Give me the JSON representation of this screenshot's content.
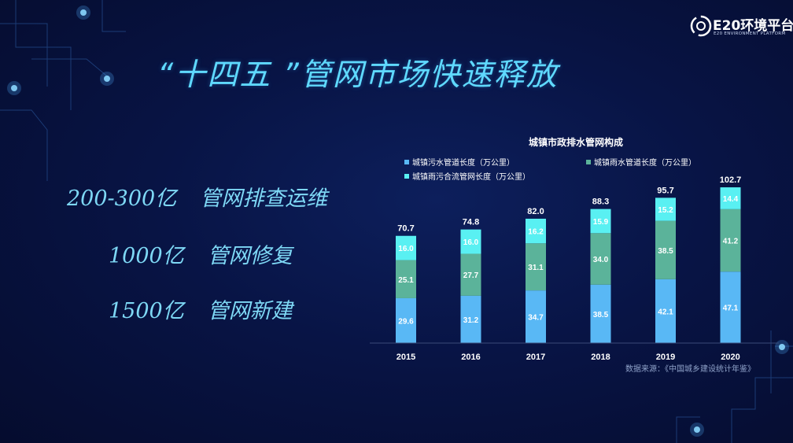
{
  "logo": {
    "name": "E20环境平台",
    "subtitle": "E20 ENVIRONMENT PLATFORM"
  },
  "title": "“十四五 ”管网市场快速释放",
  "stats": [
    {
      "amount": "200-300亿",
      "desc": "管网排查运维"
    },
    {
      "amount": "1000亿",
      "desc": "管网修复"
    },
    {
      "amount": "1500亿",
      "desc": "管网新建"
    }
  ],
  "colors": {
    "background": "#081445",
    "title": "#5fd9ff",
    "series_sewage": "#59b8f5",
    "series_storm": "#5bb39a",
    "series_combined": "#59f0f2"
  },
  "chart_data": {
    "type": "bar",
    "stacked": true,
    "title": "城镇市政排水管网构成",
    "categories": [
      "2015",
      "2016",
      "2017",
      "2018",
      "2019",
      "2020"
    ],
    "series": [
      {
        "name": "城镇污水管道长度（万公里）",
        "color": "#59b8f5",
        "values": [
          29.6,
          31.2,
          34.7,
          38.5,
          42.1,
          47.1
        ]
      },
      {
        "name": "城镇雨水管道长度（万公里）",
        "color": "#5bb39a",
        "values": [
          25.1,
          27.7,
          31.1,
          34.0,
          38.5,
          41.2
        ]
      },
      {
        "name": "城镇雨污合流管网长度（万公里）",
        "color": "#59f0f2",
        "values": [
          16.0,
          16.0,
          16.2,
          15.9,
          15.2,
          14.4
        ]
      }
    ],
    "totals": [
      "70.7",
      "74.8",
      "82.0",
      "88.3",
      "95.7",
      "102.7"
    ],
    "ylim": [
      0,
      110
    ],
    "legend_position": "top",
    "source": "数据来源：《中国城乡建设统计年鉴》"
  }
}
